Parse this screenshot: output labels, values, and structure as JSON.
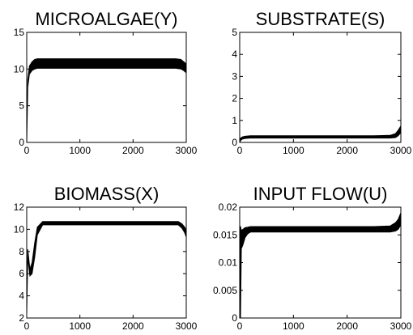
{
  "chart_data": [
    {
      "type": "area",
      "title": "MICROALGAE(Y)",
      "xlim": [
        0,
        3000
      ],
      "ylim": [
        0,
        15
      ],
      "xticks": [
        "0",
        "1000",
        "2000",
        "3000"
      ],
      "yticks": [
        "0",
        "5",
        "10",
        "15"
      ],
      "x": [
        0,
        20,
        50,
        100,
        150,
        200,
        500,
        1000,
        1500,
        2000,
        2500,
        2800,
        2900,
        2950,
        3000
      ],
      "y_min": [
        0,
        7.5,
        9.3,
        9.8,
        10.0,
        10.1,
        10.1,
        10.1,
        10.1,
        10.1,
        10.1,
        10.1,
        10.0,
        9.8,
        9.5
      ],
      "y_max": [
        0,
        8.5,
        10.4,
        11.0,
        11.3,
        11.4,
        11.4,
        11.4,
        11.4,
        11.4,
        11.4,
        11.4,
        11.3,
        11.0,
        10.7
      ]
    },
    {
      "type": "area",
      "title": "SUBSTRATE(S)",
      "xlim": [
        0,
        3000
      ],
      "ylim": [
        0,
        5
      ],
      "xticks": [
        "0",
        "1000",
        "2000",
        "3000"
      ],
      "yticks": [
        "0",
        "1",
        "2",
        "3",
        "4",
        "5"
      ],
      "x": [
        0,
        20,
        50,
        100,
        200,
        500,
        1000,
        1500,
        2000,
        2500,
        2800,
        2900,
        2950,
        3000
      ],
      "y_min": [
        0,
        0.1,
        0.15,
        0.18,
        0.2,
        0.2,
        0.2,
        0.2,
        0.2,
        0.2,
        0.2,
        0.22,
        0.3,
        0.45
      ],
      "y_max": [
        0.1,
        0.2,
        0.25,
        0.28,
        0.3,
        0.3,
        0.3,
        0.3,
        0.3,
        0.3,
        0.32,
        0.4,
        0.55,
        0.75
      ]
    },
    {
      "type": "area",
      "title": "BIOMASS(X)",
      "xlim": [
        0,
        3000
      ],
      "ylim": [
        2,
        12
      ],
      "xticks": [
        "0",
        "1000",
        "2000",
        "3000"
      ],
      "yticks": [
        "2",
        "4",
        "6",
        "8",
        "10",
        "12"
      ],
      "x": [
        0,
        20,
        60,
        100,
        150,
        200,
        300,
        500,
        1000,
        1500,
        2000,
        2500,
        2850,
        2920,
        2970,
        3000
      ],
      "y_min": [
        2.4,
        7.5,
        5.8,
        6.0,
        7.5,
        9.5,
        10.4,
        10.4,
        10.4,
        10.4,
        10.4,
        10.4,
        10.4,
        10.1,
        9.7,
        9.3
      ],
      "y_max": [
        2.8,
        8.2,
        6.4,
        7.0,
        8.8,
        10.2,
        10.7,
        10.7,
        10.7,
        10.7,
        10.7,
        10.7,
        10.7,
        10.5,
        10.2,
        9.9
      ]
    },
    {
      "type": "area",
      "title": "INPUT FLOW(U)",
      "xlim": [
        0,
        3000
      ],
      "ylim": [
        0,
        0.02
      ],
      "xticks": [
        "0",
        "1000",
        "2000",
        "3000"
      ],
      "yticks": [
        "0",
        "0.005",
        "0.01",
        "0.015",
        "0.02"
      ],
      "x": [
        0,
        15,
        30,
        60,
        100,
        150,
        200,
        500,
        1000,
        1500,
        2000,
        2500,
        2800,
        2900,
        2950,
        3000
      ],
      "y_min": [
        0,
        0,
        0.0125,
        0.0132,
        0.0145,
        0.0152,
        0.0155,
        0.0155,
        0.0155,
        0.0155,
        0.0155,
        0.0155,
        0.0155,
        0.0157,
        0.016,
        0.0168
      ],
      "y_max": [
        0.0165,
        0.0165,
        0.0158,
        0.016,
        0.0163,
        0.0164,
        0.0165,
        0.0165,
        0.0165,
        0.0165,
        0.0165,
        0.0165,
        0.0166,
        0.0172,
        0.0178,
        0.019
      ]
    }
  ]
}
